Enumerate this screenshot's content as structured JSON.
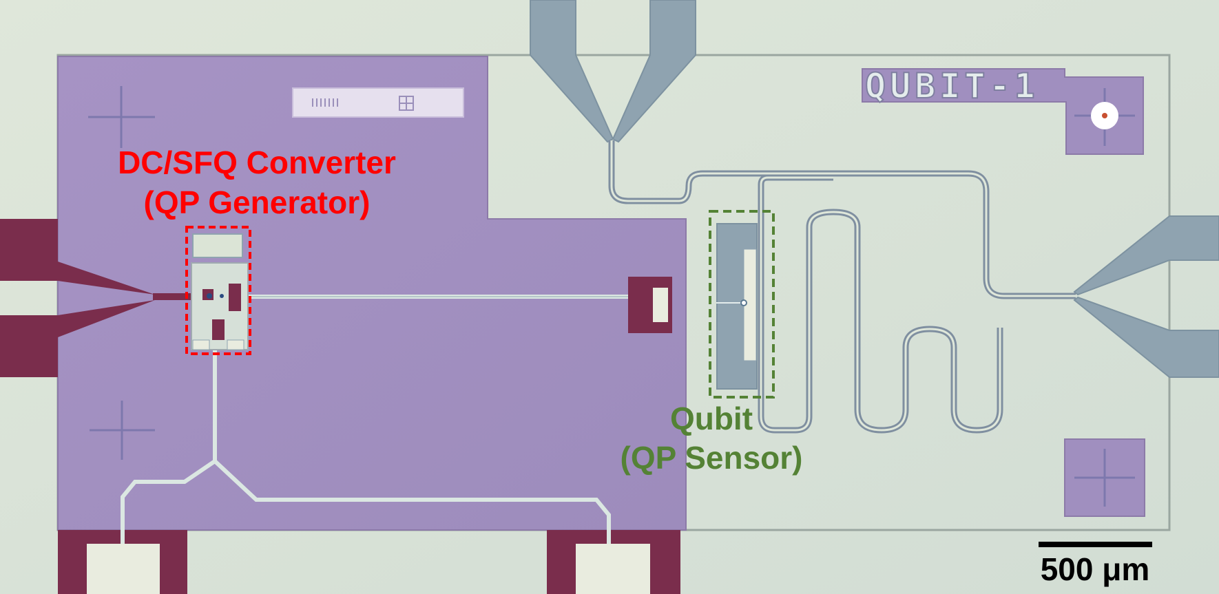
{
  "image": {
    "chip_label": "QUBIT-1",
    "labels": {
      "converter_line1": "DC/SFQ Converter",
      "converter_line2": "(QP Generator)",
      "qubit_line1": "Qubit",
      "qubit_line2": "(QP Sensor)"
    },
    "scale_bar": {
      "label": "500 μm"
    },
    "colors": {
      "substrate": "#dde6d8",
      "ground_plane": "#a08fbf",
      "pads": "#7a2d4c",
      "feedlines": "#8fa3b0",
      "converter_box": "#ff0000",
      "qubit_box": "#548235"
    }
  }
}
